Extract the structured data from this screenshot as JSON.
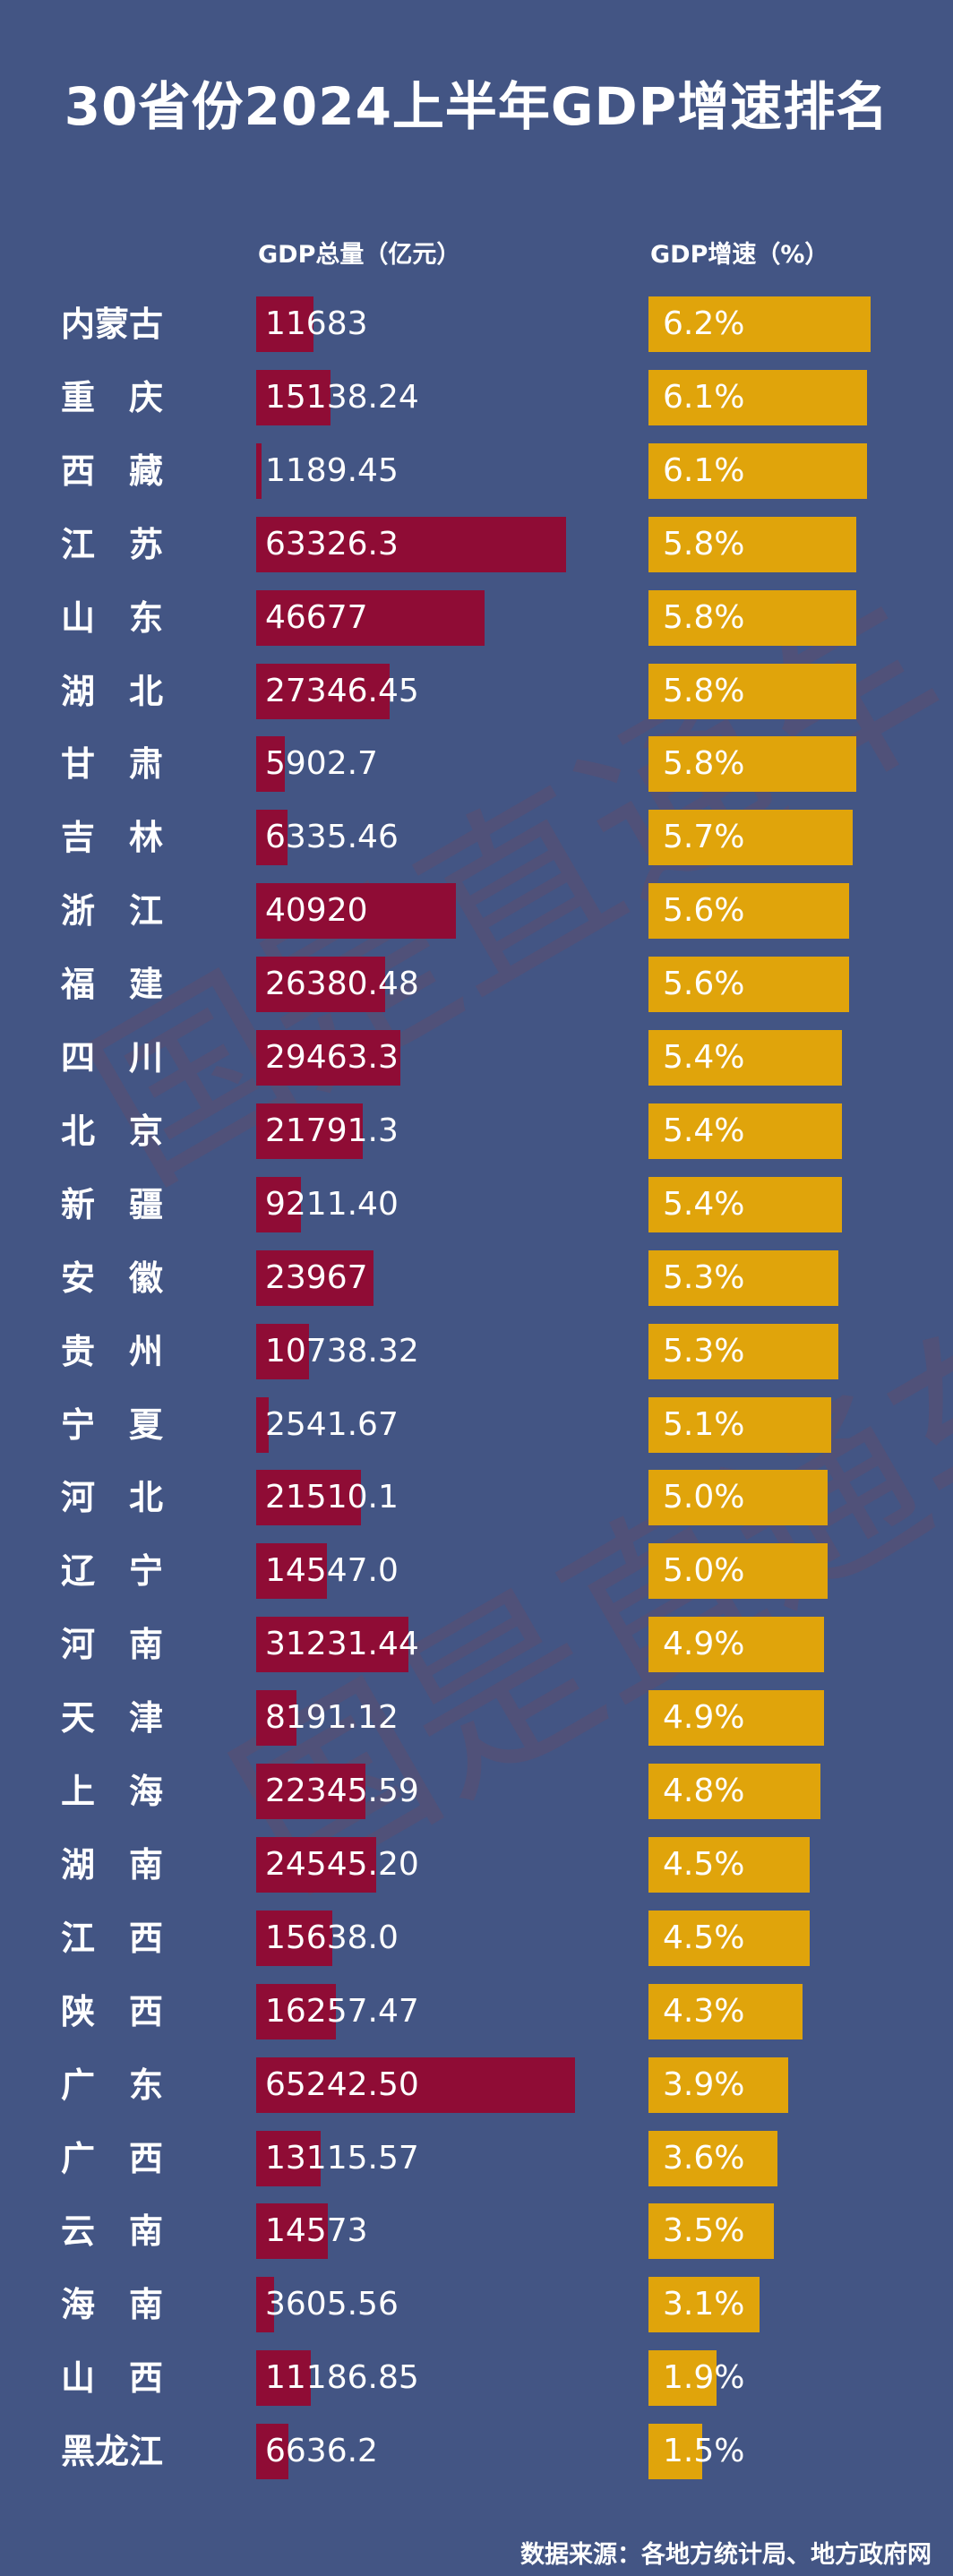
{
  "title": "30省份2024上半年GDP增速排名",
  "headers": {
    "gdp": "GDP总量（亿元）",
    "growth": "GDP增速（%）"
  },
  "source": "数据来源：各地方统计局、地方政府网",
  "watermark": "国是直通车",
  "colors": {
    "background": "#435584",
    "gdp_bar": "#8f0c35",
    "growth_bar": "#e0a40b",
    "text": "#ffffff"
  },
  "chart_data": {
    "type": "bar",
    "title": "30省份2024上半年GDP增速排名",
    "categories": [
      "内蒙古",
      "重　庆",
      "西　藏",
      "江　苏",
      "山　东",
      "湖　北",
      "甘　肃",
      "吉　林",
      "浙　江",
      "福　建",
      "四　川",
      "北　京",
      "新　疆",
      "安　徽",
      "贵　州",
      "宁　夏",
      "河　北",
      "辽　宁",
      "河　南",
      "天　津",
      "上　海",
      "湖　南",
      "江　西",
      "陕　西",
      "广　东",
      "广　西",
      "云　南",
      "海　南",
      "山　西",
      "黑龙江"
    ],
    "series": [
      {
        "name": "GDP总量（亿元）",
        "values": [
          11683,
          15138.24,
          1189.45,
          63326.3,
          46677,
          27346.45,
          5902.7,
          6335.46,
          40920,
          26380.48,
          29463.3,
          21791.3,
          9211.4,
          23967,
          10738.32,
          2541.67,
          21510.1,
          14547.0,
          31231.44,
          8191.12,
          22345.59,
          24545.2,
          15638.0,
          16257.47,
          65242.5,
          13115.57,
          14573,
          3605.56,
          11186.85,
          6636.2
        ],
        "labels": [
          "11683",
          "15138.24",
          "1189.45",
          "63326.3",
          "46677",
          "27346.45",
          "5902.7",
          "6335.46",
          "40920",
          "26380.48",
          "29463.3",
          "21791.3",
          "9211.40",
          "23967",
          "10738.32",
          "2541.67",
          "21510.1",
          "14547.0",
          "31231.44",
          "8191.12",
          "22345.59",
          "24545.20",
          "15638.0",
          "16257.47",
          "65242.50",
          "13115.57",
          "14573",
          "3605.56",
          "11186.85",
          "6636.2"
        ]
      },
      {
        "name": "GDP增速（%）",
        "values": [
          6.2,
          6.1,
          6.1,
          5.8,
          5.8,
          5.8,
          5.8,
          5.7,
          5.6,
          5.6,
          5.4,
          5.4,
          5.4,
          5.3,
          5.3,
          5.1,
          5.0,
          5.0,
          4.9,
          4.9,
          4.8,
          4.5,
          4.5,
          4.3,
          3.9,
          3.6,
          3.5,
          3.1,
          1.9,
          1.5
        ],
        "labels": [
          "6.2%",
          "6.1%",
          "6.1%",
          "5.8%",
          "5.8%",
          "5.8%",
          "5.8%",
          "5.7%",
          "5.6%",
          "5.6%",
          "5.4%",
          "5.4%",
          "5.4%",
          "5.3%",
          "5.3%",
          "5.1%",
          "5.0%",
          "5.0%",
          "4.9%",
          "4.9%",
          "4.8%",
          "4.5%",
          "4.5%",
          "4.3%",
          "3.9%",
          "3.6%",
          "3.5%",
          "3.1%",
          "1.9%",
          "1.5%"
        ]
      }
    ]
  }
}
